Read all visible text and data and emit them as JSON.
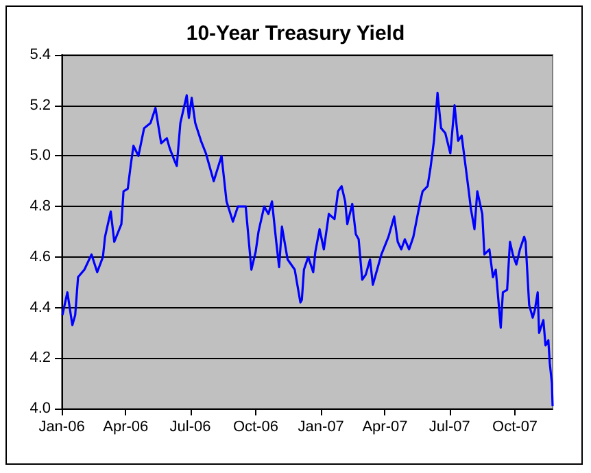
{
  "chart_data": {
    "type": "line",
    "title": "10-Year Treasury Yield",
    "x": [
      "2006-01-02",
      "2006-01-09",
      "2006-01-16",
      "2006-01-20",
      "2006-01-24",
      "2006-02-02",
      "2006-02-12",
      "2006-02-20",
      "2006-02-28",
      "2006-03-03",
      "2006-03-11",
      "2006-03-16",
      "2006-03-26",
      "2006-03-29",
      "2006-04-04",
      "2006-04-08",
      "2006-04-12",
      "2006-04-19",
      "2006-04-27",
      "2006-05-06",
      "2006-05-13",
      "2006-05-21",
      "2006-05-29",
      "2006-06-02",
      "2006-06-09",
      "2006-06-12",
      "2006-06-17",
      "2006-06-26",
      "2006-06-29",
      "2006-07-03",
      "2006-07-08",
      "2006-07-16",
      "2006-07-23",
      "2006-08-03",
      "2006-08-14",
      "2006-08-21",
      "2006-08-30",
      "2006-09-06",
      "2006-09-17",
      "2006-09-25",
      "2006-10-01",
      "2006-10-05",
      "2006-10-13",
      "2006-10-19",
      "2006-10-24",
      "2006-10-30",
      "2006-11-03",
      "2006-11-07",
      "2006-11-15",
      "2006-11-25",
      "2006-12-03",
      "2006-12-05",
      "2006-12-08",
      "2006-12-14",
      "2006-12-21",
      "2006-12-24",
      "2006-12-30",
      "2007-01-05",
      "2007-01-12",
      "2007-01-20",
      "2007-01-25",
      "2007-01-30",
      "2007-02-04",
      "2007-02-07",
      "2007-02-14",
      "2007-02-19",
      "2007-02-23",
      "2007-02-28",
      "2007-03-05",
      "2007-03-11",
      "2007-03-15",
      "2007-03-21",
      "2007-03-27",
      "2007-04-06",
      "2007-04-14",
      "2007-04-19",
      "2007-04-24",
      "2007-04-29",
      "2007-05-05",
      "2007-05-11",
      "2007-05-20",
      "2007-05-24",
      "2007-05-31",
      "2007-06-04",
      "2007-06-09",
      "2007-06-14",
      "2007-06-19",
      "2007-06-25",
      "2007-07-02",
      "2007-07-08",
      "2007-07-13",
      "2007-07-18",
      "2007-07-23",
      "2007-07-28",
      "2007-07-31",
      "2007-08-05",
      "2007-08-09",
      "2007-08-16",
      "2007-08-19",
      "2007-08-26",
      "2007-08-31",
      "2007-09-04",
      "2007-09-11",
      "2007-09-14",
      "2007-09-20",
      "2007-09-24",
      "2007-09-28",
      "2007-10-03",
      "2007-10-08",
      "2007-10-14",
      "2007-10-16",
      "2007-10-21",
      "2007-10-26",
      "2007-10-29",
      "2007-11-02",
      "2007-11-04",
      "2007-11-10",
      "2007-11-13",
      "2007-11-17",
      "2007-11-19",
      "2007-11-22",
      "2007-11-23"
    ],
    "series": [
      {
        "color": "#0000ff",
        "values": [
          4.37,
          4.46,
          4.33,
          4.37,
          4.52,
          4.55,
          4.61,
          4.54,
          4.6,
          4.68,
          4.78,
          4.66,
          4.73,
          4.86,
          4.87,
          4.96,
          5.04,
          5.0,
          5.11,
          5.13,
          5.19,
          5.05,
          5.07,
          5.03,
          4.98,
          4.96,
          5.13,
          5.24,
          5.15,
          5.23,
          5.13,
          5.06,
          5.01,
          4.9,
          5.0,
          4.82,
          4.74,
          4.8,
          4.8,
          4.55,
          4.62,
          4.7,
          4.8,
          4.77,
          4.82,
          4.66,
          4.56,
          4.72,
          4.59,
          4.55,
          4.42,
          4.43,
          4.55,
          4.6,
          4.54,
          4.62,
          4.71,
          4.63,
          4.77,
          4.75,
          4.86,
          4.88,
          4.82,
          4.73,
          4.81,
          4.69,
          4.67,
          4.51,
          4.53,
          4.59,
          4.49,
          4.55,
          4.61,
          4.68,
          4.76,
          4.66,
          4.63,
          4.67,
          4.63,
          4.68,
          4.81,
          4.86,
          4.88,
          4.95,
          5.06,
          5.25,
          5.11,
          5.09,
          5.01,
          5.2,
          5.06,
          5.08,
          4.97,
          4.86,
          4.79,
          4.71,
          4.86,
          4.77,
          4.61,
          4.63,
          4.52,
          4.55,
          4.32,
          4.46,
          4.47,
          4.66,
          4.61,
          4.57,
          4.63,
          4.68,
          4.66,
          4.41,
          4.36,
          4.39,
          4.46,
          4.3,
          4.35,
          4.25,
          4.27,
          4.18,
          4.1,
          4.01
        ]
      }
    ],
    "xlim": [
      "2006-01-01",
      "2007-11-23"
    ],
    "xticks": [
      {
        "value": "2006-01-01",
        "label": "Jan-06"
      },
      {
        "value": "2006-04-01",
        "label": "Apr-06"
      },
      {
        "value": "2006-07-01",
        "label": "Jul-06"
      },
      {
        "value": "2006-10-01",
        "label": "Oct-06"
      },
      {
        "value": "2007-01-01",
        "label": "Jan-07"
      },
      {
        "value": "2007-04-01",
        "label": "Apr-07"
      },
      {
        "value": "2007-07-01",
        "label": "Jul-07"
      },
      {
        "value": "2007-10-01",
        "label": "Oct-07"
      }
    ],
    "ylim": [
      4.0,
      5.4
    ],
    "yticks": [
      {
        "value": 4.0,
        "label": "4.0"
      },
      {
        "value": 4.2,
        "label": "4.2"
      },
      {
        "value": 4.4,
        "label": "4.4"
      },
      {
        "value": 4.6,
        "label": "4.6"
      },
      {
        "value": 4.8,
        "label": "4.8"
      },
      {
        "value": 5.0,
        "label": "5.0"
      },
      {
        "value": 5.2,
        "label": "5.2"
      },
      {
        "value": 5.4,
        "label": "5.4"
      }
    ],
    "grid": "y",
    "marker": "none",
    "line_style": "solid"
  }
}
